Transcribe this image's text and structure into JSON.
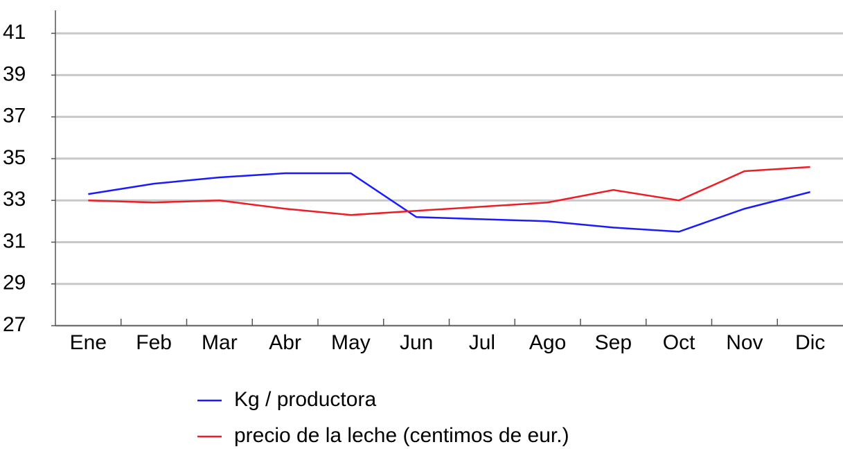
{
  "chart_data": {
    "type": "line",
    "categories": [
      "Ene",
      "Feb",
      "Mar",
      "Abr",
      "May",
      "Jun",
      "Jul",
      "Ago",
      "Sep",
      "Oct",
      "Nov",
      "Dic"
    ],
    "series": [
      {
        "name": "Kg / productora",
        "color": "#1a1aff",
        "values": [
          33.3,
          33.8,
          34.1,
          34.3,
          34.3,
          32.2,
          32.1,
          32.0,
          31.7,
          31.5,
          32.6,
          33.4
        ]
      },
      {
        "name": "precio de la leche (centimos de eur.)",
        "color": "#ee1c24",
        "values": [
          33.0,
          32.9,
          33.0,
          32.6,
          32.3,
          32.5,
          32.7,
          32.9,
          33.5,
          33.0,
          34.4,
          34.6
        ]
      }
    ],
    "ylim": [
      27,
      42
    ],
    "yticks": [
      27,
      29,
      31,
      33,
      35,
      37,
      39,
      41
    ],
    "grid": true
  }
}
